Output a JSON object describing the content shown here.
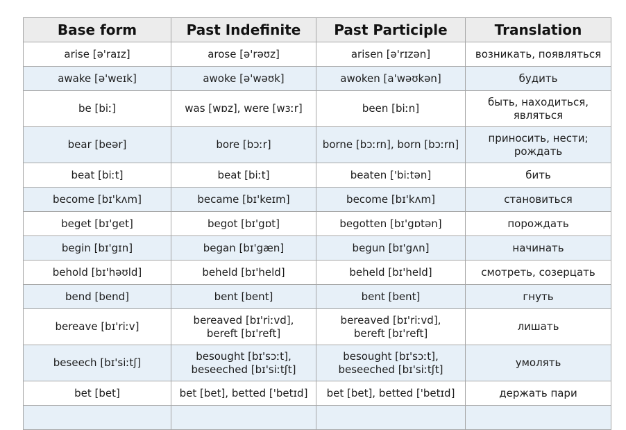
{
  "table": {
    "colors": {
      "header_bg": "#ececec",
      "row_alt_bg": "#e7f0f8",
      "border": "#a6a6a6",
      "text": "#1c1c1c"
    },
    "headers": {
      "base": "Base form",
      "past_indefinite": "Past Indefinite",
      "past_participle": "Past Participle",
      "translation": "Translation"
    },
    "rows": [
      {
        "base": "arise [ə'raɪz]",
        "past_indefinite": "arose [ə'rəʊz]",
        "past_participle": "arisen [ə'rɪzən]",
        "translation": "возникать, появляться"
      },
      {
        "base": "awake [ə'weɪk]",
        "past_indefinite": "awoke [ə'wəʊk]",
        "past_participle": "awoken [a'wəʊkən]",
        "translation": "будить"
      },
      {
        "base": "be [biː]",
        "past_indefinite": "was [wɒz], were [wɜːr]",
        "past_participle": "been [biːn]",
        "translation": "быть, находиться,\nявляться"
      },
      {
        "base": "bear [beər]",
        "past_indefinite": "bore [bɔːr]",
        "past_participle": "borne [bɔːrn], born [bɔːrn]",
        "translation": "приносить, нести;\nрождать"
      },
      {
        "base": "beat [biːt]",
        "past_indefinite": "beat [biːt]",
        "past_participle": "beaten ['biːtən]",
        "translation": "бить"
      },
      {
        "base": "become [bɪ'kʌm]",
        "past_indefinite": "became [bɪ'keɪm]",
        "past_participle": "become [bɪ'kʌm]",
        "translation": "становиться"
      },
      {
        "base": "beget [bɪ'get]",
        "past_indefinite": "begot [bɪ'gɒt]",
        "past_participle": "begotten [bɪ'gɒtən]",
        "translation": "порождать"
      },
      {
        "base": "begin [bɪ'gɪn]",
        "past_indefinite": "began [bɪ'gæn]",
        "past_participle": "begun [bɪ'gʌn]",
        "translation": "начинать"
      },
      {
        "base": "behold [bɪ'həʊld]",
        "past_indefinite": "beheld [bɪ'held]",
        "past_participle": "beheld [bɪ'held]",
        "translation": "смотреть, созерцать"
      },
      {
        "base": "bend [bend]",
        "past_indefinite": "bent [bent]",
        "past_participle": "bent [bent]",
        "translation": "гнуть"
      },
      {
        "base": "bereave [bɪ'riːv]",
        "past_indefinite": "bereaved [bɪ'riːvd],\nbereft [bɪ'reft]",
        "past_participle": "bereaved [bɪ'riːvd],\nbereft [bɪ'reft]",
        "translation": "лишать"
      },
      {
        "base": "beseech [bɪ'siːtʃ]",
        "past_indefinite": "besought [bɪ'sɔːt],\nbeseeched [bɪ'siːtʃt]",
        "past_participle": "besought [bɪ'sɔːt],\nbeseeched [bɪ'siːtʃt]",
        "translation": "умолять"
      },
      {
        "base": "bet [bet]",
        "past_indefinite": "bet [bet], betted ['betɪd]",
        "past_participle": "bet [bet], betted ['betɪd]",
        "translation": "держать пари"
      },
      {
        "base": "",
        "past_indefinite": "",
        "past_participle": "",
        "translation": ""
      }
    ]
  }
}
